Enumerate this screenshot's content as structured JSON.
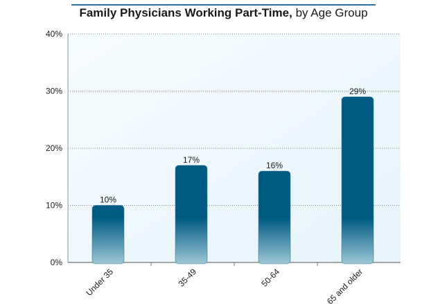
{
  "chart_data": {
    "type": "bar",
    "title": "Family Physicians Working Part-Time,",
    "subtitle": "by Age Group",
    "xlabel": "",
    "ylabel": "",
    "categories": [
      "Under 35",
      "35-49",
      "50-64",
      "65 and older"
    ],
    "values": [
      10,
      17,
      16,
      29
    ],
    "value_labels": [
      "10%",
      "17%",
      "16%",
      "29%"
    ],
    "ylim": [
      0,
      40
    ],
    "yticks": [
      0,
      10,
      20,
      30,
      40
    ],
    "ytick_labels": [
      "0%",
      "10%",
      "20%",
      "30%",
      "40%"
    ],
    "grid": true,
    "colors": {
      "bar_top": "#005b82",
      "bar_bottom": "#9cc6d6",
      "plot_bg": "#eef8fd",
      "title_rule": "#2f6f9f"
    }
  }
}
